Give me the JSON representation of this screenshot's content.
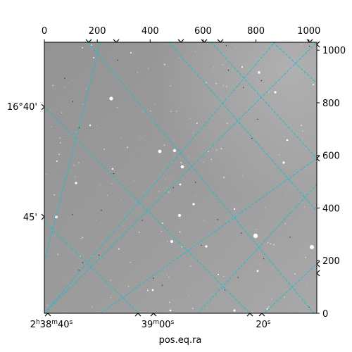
{
  "image": {
    "subject": "star-field",
    "background_colors": [
      "#8c8c8c",
      "#9a9a9a",
      "#b0b0b0"
    ],
    "grid_color": "#17becf",
    "frame_color": "#000000"
  },
  "pixel_axis": {
    "x_ticks": [
      "0",
      "200",
      "400",
      "600",
      "800",
      "1000"
    ],
    "y_ticks": [
      "0",
      "200",
      "400",
      "600",
      "800",
      "1000"
    ],
    "x_values": [
      0,
      200,
      400,
      600,
      800,
      1000
    ],
    "y_values": [
      0,
      200,
      400,
      600,
      800,
      1000
    ],
    "range": [
      0,
      1030
    ]
  },
  "world_axis": {
    "ra_labels": [
      {
        "h": "2",
        "m": "38",
        "s": "40",
        "text": "2h38m40s"
      },
      {
        "h": "",
        "m": "39",
        "s": "00",
        "text": "39m00s"
      },
      {
        "h": "",
        "m": "",
        "s": "20",
        "text": "20s"
      }
    ],
    "dec_labels": [
      "16°40'",
      "45'"
    ],
    "xlabel": "pos.eq.ra"
  }
}
